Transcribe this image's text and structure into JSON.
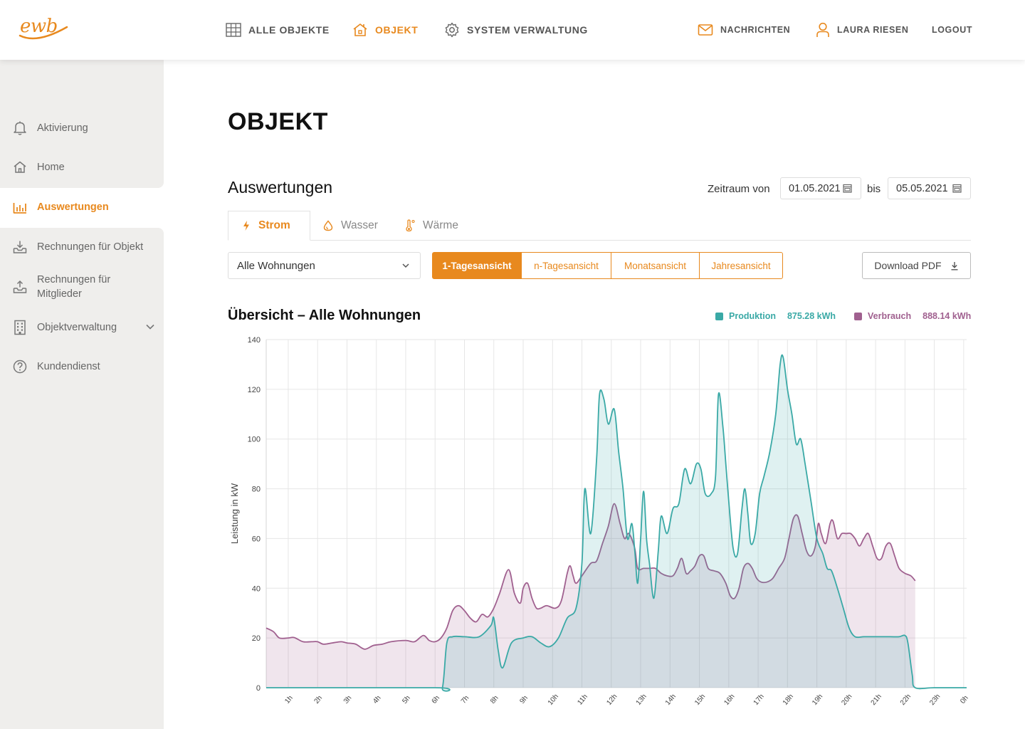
{
  "app": {
    "logo_text": "ewb",
    "brand_color": "#e8891e"
  },
  "topnav": {
    "items": [
      {
        "label": "ALLE OBJEKTE",
        "icon": "grid-icon",
        "active": false
      },
      {
        "label": "OBJEKT",
        "icon": "house-icon",
        "active": true
      },
      {
        "label": "SYSTEM VERWALTUNG",
        "icon": "gear-icon",
        "active": false
      }
    ],
    "messages_label": "NACHRICHTEN",
    "user_label": "LAURA RIESEN",
    "logout_label": "LOGOUT"
  },
  "sidebar": {
    "items": [
      {
        "label": "Aktivierung",
        "icon": "bell-icon",
        "active": false
      },
      {
        "label": "Home",
        "icon": "home-icon",
        "active": false
      },
      {
        "label": "Auswertungen",
        "icon": "bar-chart-icon",
        "active": true
      },
      {
        "label": "Rechnungen für Objekt",
        "icon": "tray-download-icon",
        "active": false
      },
      {
        "label": "Rechnungen für Mitglieder",
        "label_line1": "Rechnungen für",
        "label_line2": "Mitglieder",
        "icon": "tray-upload-icon",
        "active": false
      },
      {
        "label": "Objektverwaltung",
        "icon": "building-icon",
        "active": false,
        "expandable": true
      },
      {
        "label": "Kundendienst",
        "icon": "help-circle-icon",
        "active": false
      }
    ]
  },
  "page": {
    "title": "OBJEKT",
    "section_title": "Auswertungen",
    "date_from_label": "Zeitraum von",
    "date_from": "01.05.2021",
    "date_to_label": "bis",
    "date_to": "05.05.2021"
  },
  "tabs": [
    {
      "label": "Strom",
      "icon": "bolt-icon",
      "active": true
    },
    {
      "label": "Wasser",
      "icon": "drop-icon",
      "active": false
    },
    {
      "label": "Wärme",
      "icon": "thermometer-icon",
      "active": false
    }
  ],
  "filters": {
    "apartment_select": "Alle Wohnungen",
    "view_options": [
      {
        "label": "1-Tagesansicht",
        "active": true
      },
      {
        "label": "n-Tagesansicht",
        "active": false
      },
      {
        "label": "Monatsansicht",
        "active": false
      },
      {
        "label": "Jahresansicht",
        "active": false
      }
    ],
    "download_label": "Download PDF"
  },
  "chart_data": {
    "type": "area",
    "title": "Übersicht – Alle Wohnungen",
    "xlabel": "",
    "ylabel": "Leistung in kW",
    "ylim": [
      0,
      140
    ],
    "yticks": [
      0,
      20,
      40,
      60,
      80,
      100,
      120,
      140
    ],
    "x_ticks": [
      "1h",
      "2h",
      "3h",
      "4h",
      "5h",
      "6h",
      "7h",
      "8h",
      "9h",
      "10h",
      "11h",
      "12h",
      "13h",
      "14h",
      "15h",
      "16h",
      "17h",
      "18h",
      "19h",
      "20h",
      "21h",
      "22h",
      "23h",
      "0h"
    ],
    "xlim": [
      0.25,
      24.1
    ],
    "grid": true,
    "legend_position": "top-right",
    "series": [
      {
        "name": "Produktion",
        "total": "875.28 kWh",
        "color": "#3aa9a6",
        "points": [
          [
            0.25,
            0
          ],
          [
            6,
            0
          ],
          [
            6.25,
            0
          ],
          [
            6.4,
            18
          ],
          [
            6.6,
            20.5
          ],
          [
            7,
            20.5
          ],
          [
            7.5,
            20.5
          ],
          [
            7.9,
            25
          ],
          [
            8,
            28
          ],
          [
            8.15,
            15
          ],
          [
            8.3,
            8
          ],
          [
            8.6,
            18
          ],
          [
            9,
            20
          ],
          [
            9.3,
            20.5
          ],
          [
            9.6,
            18
          ],
          [
            9.9,
            16.5
          ],
          [
            10.2,
            20
          ],
          [
            10.5,
            28
          ],
          [
            10.8,
            32
          ],
          [
            11,
            50
          ],
          [
            11.1,
            80
          ],
          [
            11.3,
            62
          ],
          [
            11.5,
            92
          ],
          [
            11.6,
            118
          ],
          [
            11.75,
            116
          ],
          [
            11.9,
            106
          ],
          [
            12.1,
            112
          ],
          [
            12.25,
            95
          ],
          [
            12.4,
            80
          ],
          [
            12.55,
            60
          ],
          [
            12.7,
            66
          ],
          [
            12.8,
            55
          ],
          [
            12.9,
            42
          ],
          [
            13,
            60
          ],
          [
            13.1,
            79
          ],
          [
            13.2,
            60
          ],
          [
            13.3,
            50
          ],
          [
            13.45,
            36
          ],
          [
            13.6,
            55
          ],
          [
            13.7,
            69
          ],
          [
            13.9,
            62
          ],
          [
            14.1,
            72
          ],
          [
            14.3,
            74
          ],
          [
            14.5,
            88
          ],
          [
            14.7,
            82
          ],
          [
            14.9,
            90
          ],
          [
            15.05,
            88
          ],
          [
            15.2,
            78
          ],
          [
            15.4,
            78
          ],
          [
            15.55,
            85
          ],
          [
            15.65,
            118
          ],
          [
            15.8,
            105
          ],
          [
            15.9,
            90
          ],
          [
            16,
            75
          ],
          [
            16.15,
            56
          ],
          [
            16.3,
            54
          ],
          [
            16.45,
            72
          ],
          [
            16.55,
            80
          ],
          [
            16.65,
            70
          ],
          [
            16.75,
            58
          ],
          [
            16.9,
            62
          ],
          [
            17.05,
            78
          ],
          [
            17.2,
            85
          ],
          [
            17.4,
            95
          ],
          [
            17.6,
            110
          ],
          [
            17.75,
            130
          ],
          [
            17.85,
            133
          ],
          [
            18,
            120
          ],
          [
            18.15,
            110
          ],
          [
            18.3,
            98
          ],
          [
            18.45,
            100
          ],
          [
            18.6,
            90
          ],
          [
            18.8,
            75
          ],
          [
            19,
            60
          ],
          [
            19.2,
            54
          ],
          [
            19.35,
            48
          ],
          [
            19.5,
            47
          ],
          [
            19.7,
            40
          ],
          [
            19.9,
            32
          ],
          [
            20.1,
            24
          ],
          [
            20.3,
            20.5
          ],
          [
            20.6,
            20.5
          ],
          [
            21,
            20.5
          ],
          [
            21.5,
            20.5
          ],
          [
            21.8,
            20.5
          ],
          [
            22,
            21
          ],
          [
            22.1,
            18
          ],
          [
            22.25,
            5
          ],
          [
            22.35,
            0
          ],
          [
            23,
            0
          ],
          [
            24.1,
            0
          ]
        ]
      },
      {
        "name": "Verbrauch",
        "total": "888.14 kWh",
        "color": "#a0608f",
        "points": [
          [
            0.25,
            24
          ],
          [
            0.5,
            22.5
          ],
          [
            0.7,
            20
          ],
          [
            1,
            20
          ],
          [
            1.2,
            20.2
          ],
          [
            1.5,
            18.5
          ],
          [
            1.8,
            18.5
          ],
          [
            2,
            18.5
          ],
          [
            2.2,
            17.5
          ],
          [
            2.5,
            18
          ],
          [
            2.8,
            18.5
          ],
          [
            3,
            18
          ],
          [
            3.3,
            17.5
          ],
          [
            3.6,
            15.5
          ],
          [
            3.9,
            17
          ],
          [
            4.2,
            17.5
          ],
          [
            4.5,
            18.5
          ],
          [
            5,
            19
          ],
          [
            5.3,
            18.5
          ],
          [
            5.6,
            21
          ],
          [
            5.8,
            19
          ],
          [
            6,
            18.5
          ],
          [
            6.2,
            20
          ],
          [
            6.4,
            24
          ],
          [
            6.6,
            31
          ],
          [
            6.8,
            33
          ],
          [
            7,
            31
          ],
          [
            7.2,
            28
          ],
          [
            7.4,
            26.5
          ],
          [
            7.6,
            29.5
          ],
          [
            7.8,
            28.5
          ],
          [
            8,
            32
          ],
          [
            8.2,
            38
          ],
          [
            8.5,
            47.5
          ],
          [
            8.7,
            38
          ],
          [
            8.9,
            34
          ],
          [
            9,
            40
          ],
          [
            9.15,
            42
          ],
          [
            9.3,
            36
          ],
          [
            9.45,
            32
          ],
          [
            9.6,
            32
          ],
          [
            9.8,
            33
          ],
          [
            10.1,
            32
          ],
          [
            10.3,
            35
          ],
          [
            10.5,
            46
          ],
          [
            10.6,
            49
          ],
          [
            10.7,
            45
          ],
          [
            10.8,
            42
          ],
          [
            11,
            45
          ],
          [
            11.3,
            50
          ],
          [
            11.5,
            51
          ],
          [
            11.7,
            58
          ],
          [
            11.9,
            65
          ],
          [
            12.1,
            74
          ],
          [
            12.3,
            66
          ],
          [
            12.45,
            60
          ],
          [
            12.6,
            62
          ],
          [
            12.8,
            56
          ],
          [
            12.9,
            48
          ],
          [
            13.1,
            48
          ],
          [
            13.3,
            48
          ],
          [
            13.5,
            48
          ],
          [
            13.7,
            46
          ],
          [
            13.9,
            45
          ],
          [
            14.1,
            45
          ],
          [
            14.25,
            48
          ],
          [
            14.4,
            52
          ],
          [
            14.55,
            46
          ],
          [
            14.7,
            47
          ],
          [
            14.85,
            49
          ],
          [
            15,
            53
          ],
          [
            15.15,
            53
          ],
          [
            15.3,
            48
          ],
          [
            15.5,
            47
          ],
          [
            15.7,
            46
          ],
          [
            15.9,
            42
          ],
          [
            16.05,
            37
          ],
          [
            16.2,
            36
          ],
          [
            16.35,
            40
          ],
          [
            16.5,
            48
          ],
          [
            16.65,
            50
          ],
          [
            16.8,
            48
          ],
          [
            16.95,
            44
          ],
          [
            17.1,
            42.5
          ],
          [
            17.3,
            42.5
          ],
          [
            17.5,
            44
          ],
          [
            17.7,
            48
          ],
          [
            17.9,
            52
          ],
          [
            18.05,
            60
          ],
          [
            18.2,
            68
          ],
          [
            18.35,
            69
          ],
          [
            18.5,
            62
          ],
          [
            18.65,
            55
          ],
          [
            18.8,
            53
          ],
          [
            18.95,
            57
          ],
          [
            19.05,
            66
          ],
          [
            19.15,
            62
          ],
          [
            19.3,
            58
          ],
          [
            19.45,
            66
          ],
          [
            19.55,
            67
          ],
          [
            19.7,
            60
          ],
          [
            19.85,
            62
          ],
          [
            20,
            62
          ],
          [
            20.15,
            62
          ],
          [
            20.3,
            60
          ],
          [
            20.45,
            57
          ],
          [
            20.6,
            60
          ],
          [
            20.75,
            62
          ],
          [
            20.9,
            57
          ],
          [
            21.05,
            52
          ],
          [
            21.2,
            52
          ],
          [
            21.35,
            57
          ],
          [
            21.5,
            58
          ],
          [
            21.65,
            53
          ],
          [
            21.8,
            48
          ],
          [
            22,
            46
          ],
          [
            22.2,
            45
          ],
          [
            22.35,
            43
          ]
        ]
      }
    ]
  }
}
